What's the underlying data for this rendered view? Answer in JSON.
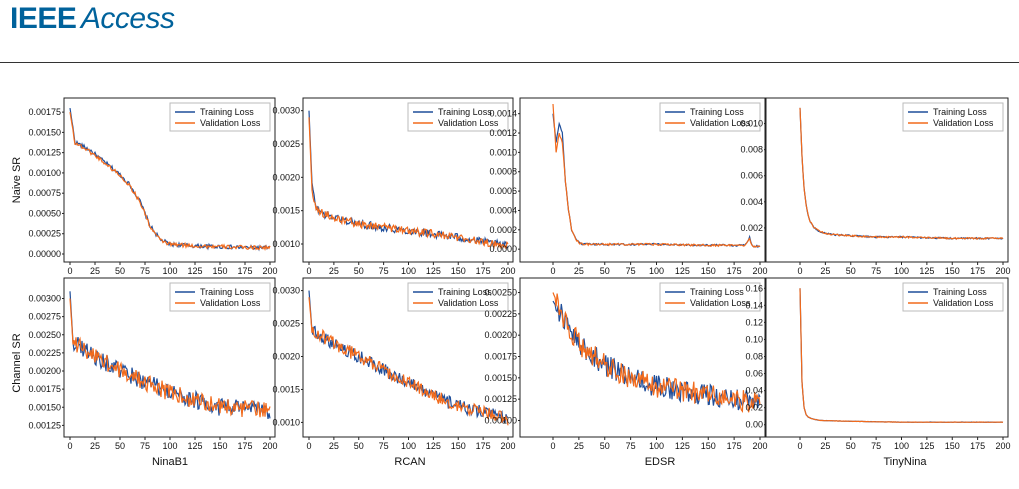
{
  "header": {
    "journal_part1": "IEEE",
    "journal_part2": "Access"
  },
  "figure": {
    "row_labels": [
      "Naive SR",
      "Channel SR"
    ],
    "col_labels": [
      "NinaB1",
      "RCAN",
      "EDSR",
      "TinyNina"
    ]
  },
  "colors": {
    "training": "#1f4e9a",
    "validation": "#f26a1b"
  },
  "chart_data": [
    {
      "type": "line",
      "row": "Naive SR",
      "model": "NinaB1",
      "xlim": [
        0,
        200
      ],
      "ylim": [
        0,
        0.00185
      ],
      "xticks": [
        "0",
        "25",
        "50",
        "75",
        "100",
        "125",
        "150",
        "175",
        "200"
      ],
      "yticks": [
        "0.00000",
        "0.00025",
        "0.00050",
        "0.00075",
        "0.00100",
        "0.00125",
        "0.00150",
        "0.00175"
      ],
      "ytick_values": [
        0,
        0.00025,
        0.0005,
        0.00075,
        0.001,
        0.00125,
        0.0015,
        0.00175
      ],
      "series": [
        {
          "name": "Training Loss",
          "x": [
            0,
            5,
            10,
            20,
            30,
            40,
            50,
            60,
            70,
            75,
            80,
            90,
            100,
            125,
            150,
            175,
            200
          ],
          "y": [
            0.0018,
            0.00138,
            0.00135,
            0.00128,
            0.00118,
            0.00108,
            0.00098,
            0.00085,
            0.00065,
            0.0005,
            0.00035,
            0.00018,
            0.00012,
            0.0001,
            9e-05,
            8e-05,
            8e-05
          ]
        },
        {
          "name": "Validation Loss",
          "x": [
            0,
            5,
            10,
            20,
            30,
            40,
            50,
            60,
            70,
            75,
            80,
            90,
            100,
            125,
            150,
            175,
            200
          ],
          "y": [
            0.00175,
            0.00137,
            0.00134,
            0.00126,
            0.00117,
            0.00107,
            0.00097,
            0.00084,
            0.00064,
            0.0005,
            0.00034,
            0.00017,
            0.00012,
            0.0001,
            9e-05,
            8e-05,
            8e-05
          ]
        }
      ],
      "noise": 2.5e-05,
      "legend": "top-right"
    },
    {
      "type": "line",
      "row": "Naive SR",
      "model": "RCAN",
      "xlim": [
        0,
        200
      ],
      "ylim": [
        0.00085,
        0.0031
      ],
      "xticks": [
        "0",
        "25",
        "50",
        "75",
        "100",
        "125",
        "150",
        "175",
        "200"
      ],
      "yticks": [
        "0.0010",
        "0.0015",
        "0.0020",
        "0.0025",
        "0.0030"
      ],
      "ytick_values": [
        0.001,
        0.0015,
        0.002,
        0.0025,
        0.003
      ],
      "series": [
        {
          "name": "Training Loss",
          "x": [
            0,
            3,
            6,
            10,
            15,
            25,
            50,
            75,
            100,
            125,
            150,
            175,
            200
          ],
          "y": [
            0.003,
            0.0019,
            0.0016,
            0.0015,
            0.00145,
            0.0014,
            0.0013,
            0.00125,
            0.0012,
            0.00115,
            0.0011,
            0.00103,
            0.00097
          ]
        },
        {
          "name": "Validation Loss",
          "x": [
            0,
            3,
            6,
            10,
            15,
            25,
            50,
            75,
            100,
            125,
            150,
            175,
            200
          ],
          "y": [
            0.0029,
            0.0018,
            0.0016,
            0.0015,
            0.00145,
            0.0014,
            0.0013,
            0.00125,
            0.0012,
            0.00115,
            0.0011,
            0.00103,
            0.00097
          ]
        }
      ],
      "noise": 6e-05,
      "legend": "top-right"
    },
    {
      "type": "line",
      "row": "Naive SR",
      "model": "EDSR",
      "xlim": [
        0,
        200
      ],
      "ylim": [
        -5e-05,
        0.0015
      ],
      "xticks": [
        "0",
        "25",
        "50",
        "75",
        "100",
        "125",
        "150",
        "175",
        "200"
      ],
      "yticks": [
        "0.0000",
        "0.0002",
        "0.0004",
        "0.0006",
        "0.0008",
        "0.0010",
        "0.0012",
        "0.0014"
      ],
      "ytick_values": [
        0,
        0.0002,
        0.0004,
        0.0006,
        0.0008,
        0.001,
        0.0012,
        0.0014
      ],
      "series": [
        {
          "name": "Training Loss",
          "x": [
            0,
            3,
            6,
            9,
            12,
            15,
            18,
            22,
            26,
            30,
            40,
            60,
            100,
            150,
            185,
            190,
            193,
            200
          ],
          "y": [
            0.0014,
            0.0011,
            0.0013,
            0.0012,
            0.0007,
            0.0004,
            0.0002,
            0.0001,
            6e-05,
            5e-05,
            5e-05,
            5e-05,
            5e-05,
            4e-05,
            4e-05,
            0.00012,
            3e-05,
            3e-05
          ]
        },
        {
          "name": "Validation Loss",
          "x": [
            0,
            3,
            6,
            9,
            12,
            15,
            18,
            22,
            26,
            30,
            40,
            60,
            100,
            150,
            185,
            190,
            193,
            200
          ],
          "y": [
            0.0015,
            0.001,
            0.0012,
            0.0011,
            0.0007,
            0.0004,
            0.0002,
            0.0001,
            6e-05,
            5e-05,
            5e-05,
            5e-05,
            5e-05,
            4e-05,
            4e-05,
            0.0001,
            3e-05,
            3e-05
          ]
        }
      ],
      "noise": 1e-05,
      "legend": "top-right"
    },
    {
      "type": "line",
      "row": "Naive SR",
      "model": "TinyNina",
      "xlim": [
        0,
        200
      ],
      "ylim": [
        0,
        0.0115
      ],
      "xticks": [
        "0",
        "25",
        "50",
        "75",
        "100",
        "125",
        "150",
        "175",
        "200"
      ],
      "yticks": [
        "0.002",
        "0.004",
        "0.006",
        "0.008",
        "0.010"
      ],
      "ytick_values": [
        0.002,
        0.004,
        0.006,
        0.008,
        0.01
      ],
      "series": [
        {
          "name": "Training Loss",
          "x": [
            0,
            2,
            4,
            6,
            8,
            10,
            14,
            20,
            30,
            50,
            75,
            100,
            150,
            200
          ],
          "y": [
            0.0112,
            0.0075,
            0.005,
            0.0038,
            0.003,
            0.0025,
            0.002,
            0.0017,
            0.0015,
            0.0014,
            0.0013,
            0.0013,
            0.0012,
            0.0012
          ]
        },
        {
          "name": "Validation Loss",
          "x": [
            0,
            2,
            4,
            6,
            8,
            10,
            14,
            20,
            30,
            50,
            75,
            100,
            150,
            200
          ],
          "y": [
            0.0112,
            0.0075,
            0.005,
            0.0038,
            0.003,
            0.0025,
            0.002,
            0.0017,
            0.0015,
            0.0014,
            0.0013,
            0.0013,
            0.0012,
            0.0012
          ]
        }
      ],
      "noise": 6e-05,
      "legend": "top-right"
    },
    {
      "type": "line",
      "row": "Channel SR",
      "model": "NinaB1",
      "xlim": [
        0,
        200
      ],
      "ylim": [
        0.0012,
        0.0032
      ],
      "xticks": [
        "0",
        "25",
        "50",
        "75",
        "100",
        "125",
        "150",
        "175",
        "200"
      ],
      "yticks": [
        "0.00125",
        "0.00150",
        "0.00175",
        "0.00200",
        "0.00225",
        "0.00250",
        "0.00275",
        "0.00300"
      ],
      "ytick_values": [
        0.00125,
        0.0015,
        0.00175,
        0.002,
        0.00225,
        0.0025,
        0.00275,
        0.003
      ],
      "series": [
        {
          "name": "Training Loss",
          "x": [
            0,
            3,
            10,
            25,
            50,
            75,
            100,
            125,
            150,
            175,
            200
          ],
          "y": [
            0.0031,
            0.0024,
            0.00235,
            0.0022,
            0.002,
            0.00185,
            0.0017,
            0.0016,
            0.0015,
            0.00148,
            0.00145
          ]
        },
        {
          "name": "Validation Loss",
          "x": [
            0,
            3,
            10,
            25,
            50,
            75,
            100,
            125,
            150,
            175,
            200
          ],
          "y": [
            0.003,
            0.0024,
            0.00235,
            0.0022,
            0.002,
            0.00185,
            0.0017,
            0.0016,
            0.0015,
            0.00148,
            0.00145
          ]
        }
      ],
      "noise": 0.00012,
      "legend": "top-right"
    },
    {
      "type": "line",
      "row": "Channel SR",
      "model": "RCAN",
      "xlim": [
        0,
        200
      ],
      "ylim": [
        0.0009,
        0.0031
      ],
      "xticks": [
        "0",
        "25",
        "50",
        "75",
        "100",
        "125",
        "150",
        "175",
        "200"
      ],
      "yticks": [
        "0.0010",
        "0.0015",
        "0.0020",
        "0.0025",
        "0.0030"
      ],
      "ytick_values": [
        0.001,
        0.0015,
        0.002,
        0.0025,
        0.003
      ],
      "series": [
        {
          "name": "Training Loss",
          "x": [
            0,
            3,
            25,
            50,
            75,
            100,
            125,
            150,
            175,
            200
          ],
          "y": [
            0.003,
            0.0024,
            0.0022,
            0.002,
            0.0018,
            0.0016,
            0.0014,
            0.00125,
            0.00115,
            0.00105
          ]
        },
        {
          "name": "Validation Loss",
          "x": [
            0,
            3,
            25,
            50,
            75,
            100,
            125,
            150,
            175,
            200
          ],
          "y": [
            0.0029,
            0.0024,
            0.0022,
            0.002,
            0.0018,
            0.0016,
            0.0014,
            0.00125,
            0.00115,
            0.00105
          ]
        }
      ],
      "noise": 0.0001,
      "legend": "top-right"
    },
    {
      "type": "line",
      "row": "Channel SR",
      "model": "EDSR",
      "xlim": [
        0,
        200
      ],
      "ylim": [
        0.0009,
        0.0026
      ],
      "xticks": [
        "0",
        "25",
        "50",
        "75",
        "100",
        "125",
        "150",
        "175",
        "200"
      ],
      "yticks": [
        "0.00100",
        "0.00125",
        "0.00150",
        "0.00175",
        "0.00200",
        "0.00225",
        "0.00250"
      ],
      "ytick_values": [
        0.001,
        0.00125,
        0.0015,
        0.00175,
        0.002,
        0.00225,
        0.0025
      ],
      "series": [
        {
          "name": "Training Loss",
          "x": [
            0,
            10,
            25,
            50,
            75,
            100,
            125,
            150,
            175,
            200
          ],
          "y": [
            0.0024,
            0.0022,
            0.0019,
            0.00165,
            0.0015,
            0.0014,
            0.00135,
            0.0013,
            0.00125,
            0.0012
          ]
        },
        {
          "name": "Validation Loss",
          "x": [
            0,
            10,
            25,
            50,
            75,
            100,
            125,
            150,
            175,
            200
          ],
          "y": [
            0.0025,
            0.0022,
            0.0019,
            0.00165,
            0.0015,
            0.0014,
            0.00135,
            0.0013,
            0.00125,
            0.0012
          ]
        }
      ],
      "noise": 0.00013,
      "legend": "top-right"
    },
    {
      "type": "line",
      "row": "Channel SR",
      "model": "TinyNina",
      "xlim": [
        0,
        200
      ],
      "ylim": [
        -0.005,
        0.165
      ],
      "xticks": [
        "0",
        "25",
        "50",
        "75",
        "100",
        "125",
        "150",
        "175",
        "200"
      ],
      "yticks": [
        "0.00",
        "0.02",
        "0.04",
        "0.06",
        "0.08",
        "0.10",
        "0.12",
        "0.14",
        "0.16"
      ],
      "ytick_values": [
        0,
        0.02,
        0.04,
        0.06,
        0.08,
        0.1,
        0.12,
        0.14,
        0.16
      ],
      "series": [
        {
          "name": "Training Loss",
          "x": [
            0,
            2,
            4,
            6,
            8,
            12,
            20,
            50,
            100,
            150,
            200
          ],
          "y": [
            0.16,
            0.05,
            0.02,
            0.012,
            0.009,
            0.007,
            0.005,
            0.004,
            0.003,
            0.003,
            0.003
          ]
        },
        {
          "name": "Validation Loss",
          "x": [
            0,
            2,
            4,
            6,
            8,
            12,
            20,
            50,
            100,
            150,
            200
          ],
          "y": [
            0.16,
            0.05,
            0.02,
            0.012,
            0.009,
            0.007,
            0.005,
            0.004,
            0.003,
            0.003,
            0.003
          ]
        }
      ],
      "noise": 0.0002,
      "legend": "top-right"
    }
  ]
}
